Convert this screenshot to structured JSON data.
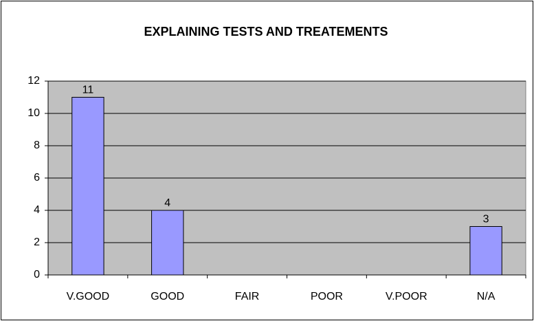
{
  "chart_data": {
    "type": "bar",
    "title": "EXPLAINING TESTS AND TREATEMENTS",
    "categories": [
      "V.GOOD",
      "GOOD",
      "FAIR",
      "POOR",
      "V.POOR",
      "N/A"
    ],
    "values": [
      11,
      4,
      0,
      0,
      0,
      3
    ],
    "value_labels": [
      "11",
      "4",
      null,
      null,
      null,
      "3"
    ],
    "color": "#9999ff",
    "ylim": [
      0,
      12
    ],
    "yticks": [
      0,
      2,
      4,
      6,
      8,
      10,
      12
    ],
    "grid": true
  }
}
